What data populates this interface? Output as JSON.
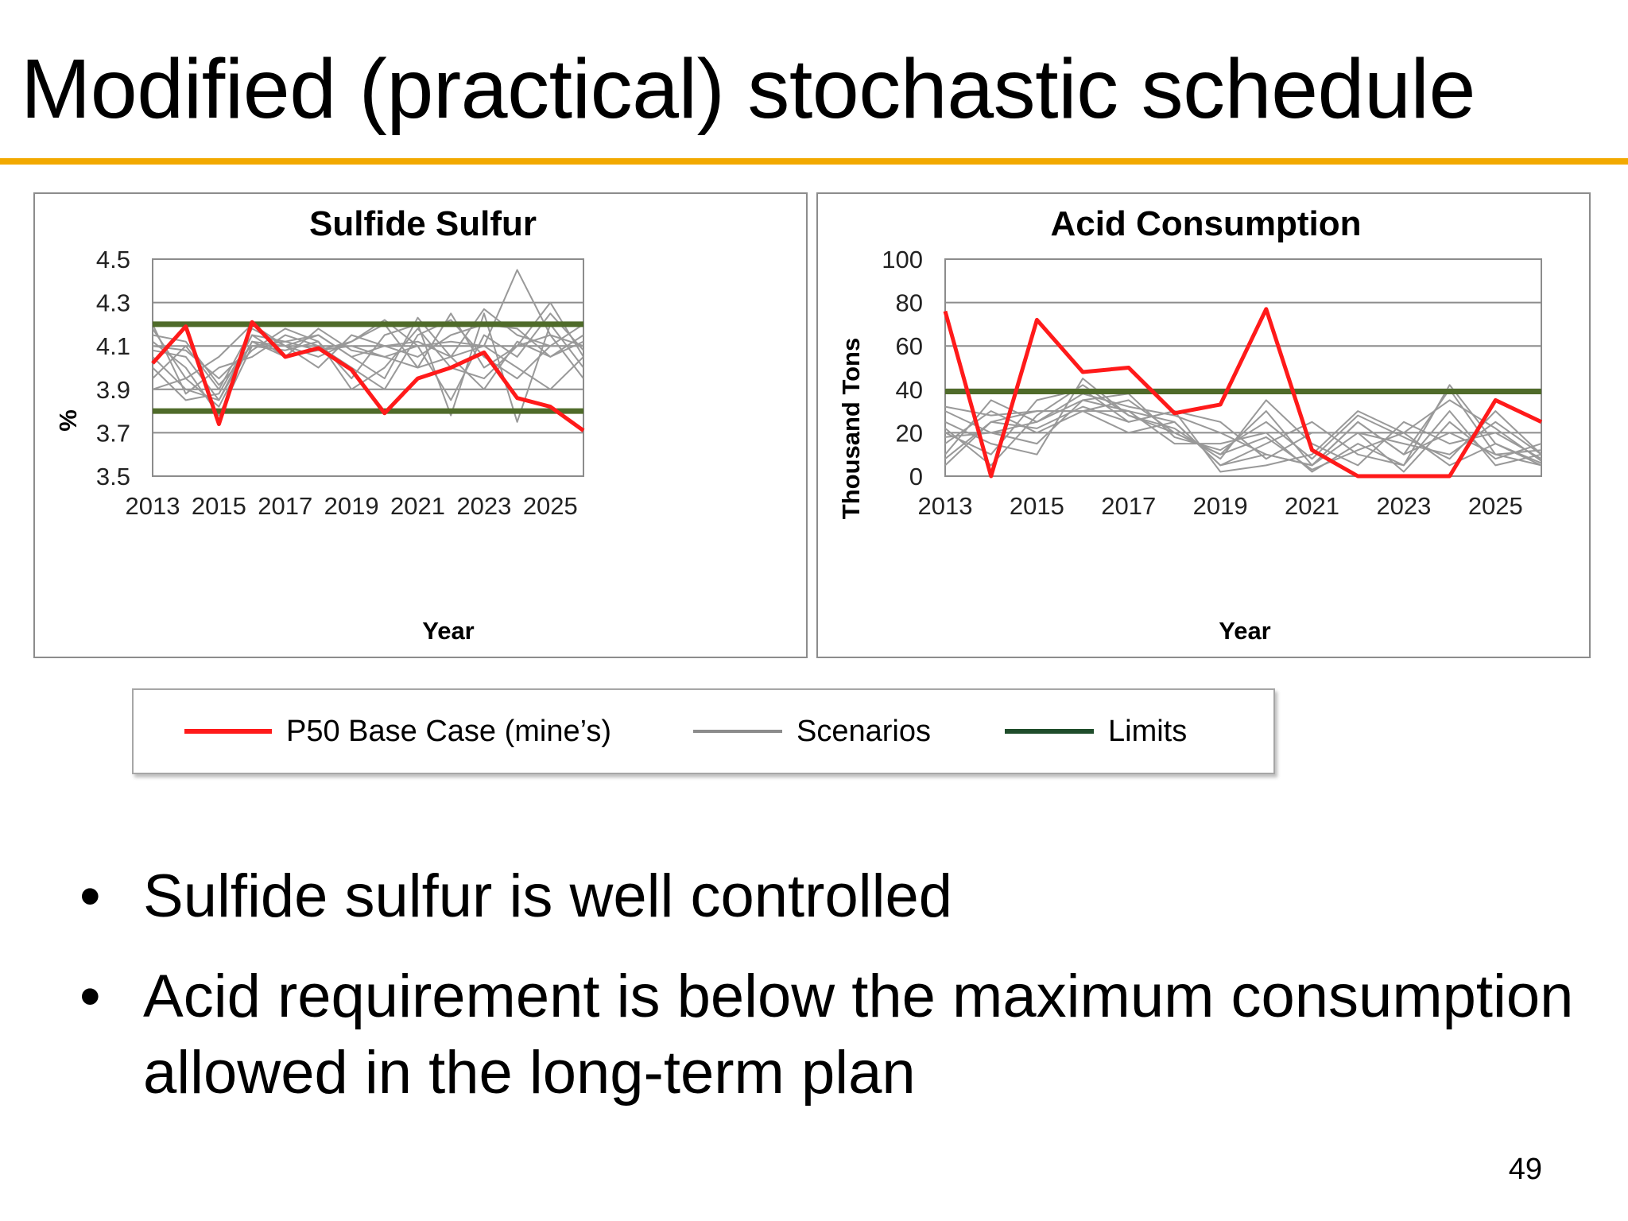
{
  "slide": {
    "title": "Modified (practical) stochastic schedule",
    "page_number": "49",
    "accent_color": "#f2a900"
  },
  "legend": {
    "items": [
      {
        "label": "P50 Base Case (mine’s)",
        "color": "#ff1a1a"
      },
      {
        "label": "Scenarios",
        "color": "#8c8c8c"
      },
      {
        "label": "Limits",
        "color": "#1f4d2b"
      }
    ]
  },
  "bullets": [
    "Sulfide sulfur is well controlled",
    "Acid requirement is below the maximum consumption allowed in the long-term plan"
  ],
  "chart_data": [
    {
      "type": "line",
      "title": "Sulfide Sulfur",
      "xlabel": "Year",
      "ylabel": "%",
      "xlim": [
        2013,
        2026
      ],
      "ylim": [
        3.5,
        4.5
      ],
      "x_ticks": [
        "2013",
        "2015",
        "2017",
        "2019",
        "2021",
        "2023",
        "2025"
      ],
      "y_ticks": [
        "4.5",
        "4.3",
        "4.1",
        "3.9",
        "3.7",
        "3.5"
      ],
      "x": [
        2013,
        2014,
        2015,
        2016,
        2017,
        2018,
        2019,
        2020,
        2021,
        2022,
        2023,
        2024,
        2025,
        2026
      ],
      "limits": [
        3.8,
        4.2
      ],
      "limit_color": "#4f6b2a",
      "base_case": {
        "name": "P50 Base Case (mine’s)",
        "color": "#ff1a1a",
        "values": [
          4.02,
          4.19,
          3.74,
          4.21,
          4.05,
          4.09,
          3.99,
          3.79,
          3.95,
          4.0,
          4.07,
          3.86,
          3.82,
          3.71
        ]
      },
      "scenario_color": "#999999",
      "scenarios": [
        [
          4.18,
          3.95,
          3.82,
          4.12,
          4.1,
          4.15,
          4.05,
          4.1,
          4.12,
          4.05,
          4.1,
          4.45,
          4.15,
          4.1
        ],
        [
          4.05,
          3.9,
          3.85,
          4.15,
          4.12,
          4.08,
          4.1,
          4.05,
          4.0,
          4.25,
          4.0,
          4.1,
          4.3,
          4.05
        ],
        [
          4.12,
          4.0,
          3.78,
          4.1,
          4.08,
          4.12,
          3.95,
          4.15,
          4.2,
          3.78,
          4.25,
          3.75,
          4.2,
          4.0
        ],
        [
          3.95,
          4.1,
          3.9,
          4.18,
          4.1,
          4.05,
          4.12,
          4.2,
          4.0,
          4.05,
          3.9,
          4.12,
          4.05,
          4.15
        ],
        [
          4.2,
          3.88,
          4.0,
          4.05,
          4.15,
          4.1,
          4.0,
          3.9,
          4.15,
          4.22,
          4.05,
          3.95,
          4.1,
          4.2
        ],
        [
          4.08,
          4.05,
          3.85,
          4.12,
          4.05,
          4.18,
          4.08,
          4.05,
          4.1,
          3.85,
          4.15,
          4.05,
          4.25,
          4.08
        ],
        [
          3.9,
          3.95,
          4.05,
          4.2,
          4.1,
          4.0,
          4.15,
          4.1,
          4.05,
          4.15,
          4.2,
          4.18,
          4.05,
          4.12
        ],
        [
          4.15,
          4.12,
          3.92,
          4.08,
          4.18,
          4.12,
          3.9,
          4.0,
          4.18,
          4.0,
          3.95,
          4.1,
          4.15,
          3.95
        ],
        [
          4.0,
          3.85,
          3.88,
          4.15,
          4.05,
          4.08,
          4.12,
          4.22,
          4.1,
          4.12,
          4.1,
          4.0,
          3.9,
          4.05
        ],
        [
          4.1,
          4.08,
          3.95,
          4.1,
          4.12,
          4.15,
          4.05,
          3.95,
          4.23,
          4.05,
          4.27,
          4.15,
          4.1,
          4.1
        ]
      ]
    },
    {
      "type": "line",
      "title": "Acid Consumption",
      "xlabel": "Year",
      "ylabel": "Thousand Tons",
      "xlim": [
        2013,
        2026
      ],
      "ylim": [
        0,
        100
      ],
      "x_ticks": [
        "2013",
        "2015",
        "2017",
        "2019",
        "2021",
        "2023",
        "2025"
      ],
      "y_ticks": [
        "100",
        "80",
        "60",
        "40",
        "20",
        "0"
      ],
      "x": [
        2013,
        2014,
        2015,
        2016,
        2017,
        2018,
        2019,
        2020,
        2021,
        2022,
        2023,
        2024,
        2025,
        2026
      ],
      "limits": [
        39
      ],
      "limit_color": "#4f6b2a",
      "base_case": {
        "name": "P50 Base Case (mine’s)",
        "color": "#ff1a1a",
        "values": [
          76,
          0,
          72,
          48,
          50,
          29,
          33,
          77,
          12,
          0,
          0,
          0,
          35,
          25
        ]
      },
      "scenario_color": "#999999",
      "scenarios": [
        [
          30,
          20,
          25,
          35,
          30,
          25,
          5,
          10,
          5,
          25,
          10,
          40,
          10,
          5
        ],
        [
          15,
          30,
          20,
          30,
          35,
          20,
          10,
          30,
          5,
          20,
          15,
          10,
          25,
          10
        ],
        [
          20,
          10,
          35,
          40,
          25,
          30,
          2,
          5,
          10,
          30,
          20,
          5,
          15,
          5
        ],
        [
          5,
          25,
          30,
          30,
          30,
          15,
          15,
          20,
          2,
          15,
          5,
          30,
          5,
          10
        ],
        [
          25,
          15,
          10,
          45,
          28,
          22,
          8,
          35,
          15,
          5,
          25,
          15,
          20,
          8
        ],
        [
          10,
          35,
          25,
          38,
          32,
          28,
          20,
          10,
          5,
          25,
          10,
          20,
          10,
          12
        ],
        [
          32,
          28,
          30,
          30,
          20,
          25,
          5,
          15,
          25,
          10,
          5,
          42,
          15,
          6
        ],
        [
          18,
          20,
          15,
          35,
          38,
          18,
          12,
          25,
          8,
          28,
          18,
          8,
          30,
          10
        ],
        [
          8,
          25,
          22,
          32,
          25,
          30,
          25,
          8,
          20,
          20,
          2,
          25,
          8,
          15
        ],
        [
          22,
          5,
          28,
          42,
          28,
          20,
          10,
          18,
          3,
          12,
          20,
          35,
          22,
          7
        ]
      ]
    }
  ]
}
